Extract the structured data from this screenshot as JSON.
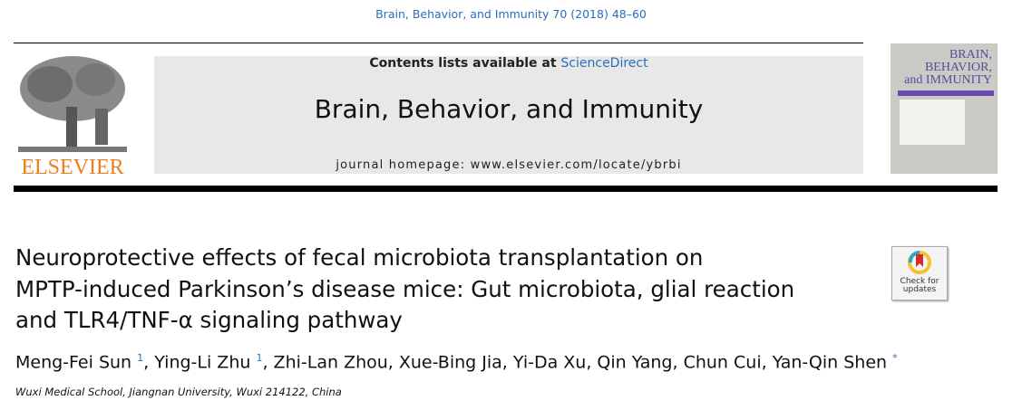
{
  "citation": "Brain, Behavior, and Immunity 70 (2018) 48–60",
  "publisher_logo": "ELSEVIER",
  "header": {
    "contents_prefix": "Contents lists available at ",
    "sciencedirect": "ScienceDirect",
    "journal_title": "Brain, Behavior, and Immunity",
    "homepage": "journal homepage: www.elsevier.com/locate/ybrbi"
  },
  "cover": {
    "title_lines": [
      "BRAIN,",
      "BEHAVIOR,",
      "and IMMUNITY"
    ]
  },
  "badge": {
    "line1": "Check for",
    "line2": "updates"
  },
  "article": {
    "title_lines": [
      "Neuroprotective effects of fecal microbiota transplantation on",
      "MPTP-induced Parkinson’s disease mice: Gut microbiota, glial reaction",
      "and TLR4/TNF-α signaling pathway"
    ],
    "authors": [
      {
        "name": "Meng-Fei Sun",
        "mark": "1"
      },
      {
        "name": "Ying-Li Zhu",
        "mark": "1"
      },
      {
        "name": "Zhi-Lan Zhou",
        "mark": ""
      },
      {
        "name": "Xue-Bing Jia",
        "mark": ""
      },
      {
        "name": "Yi-Da Xu",
        "mark": ""
      },
      {
        "name": "Qin Yang",
        "mark": ""
      },
      {
        "name": "Chun Cui",
        "mark": ""
      },
      {
        "name": "Yan-Qin Shen",
        "mark": "*"
      }
    ],
    "affiliation": "Wuxi Medical School, Jiangnan University, Wuxi 214122, China"
  },
  "colors": {
    "link": "#2a6ebb",
    "elsevier": "#f07d1a",
    "header_box": "#e8e8e8"
  }
}
